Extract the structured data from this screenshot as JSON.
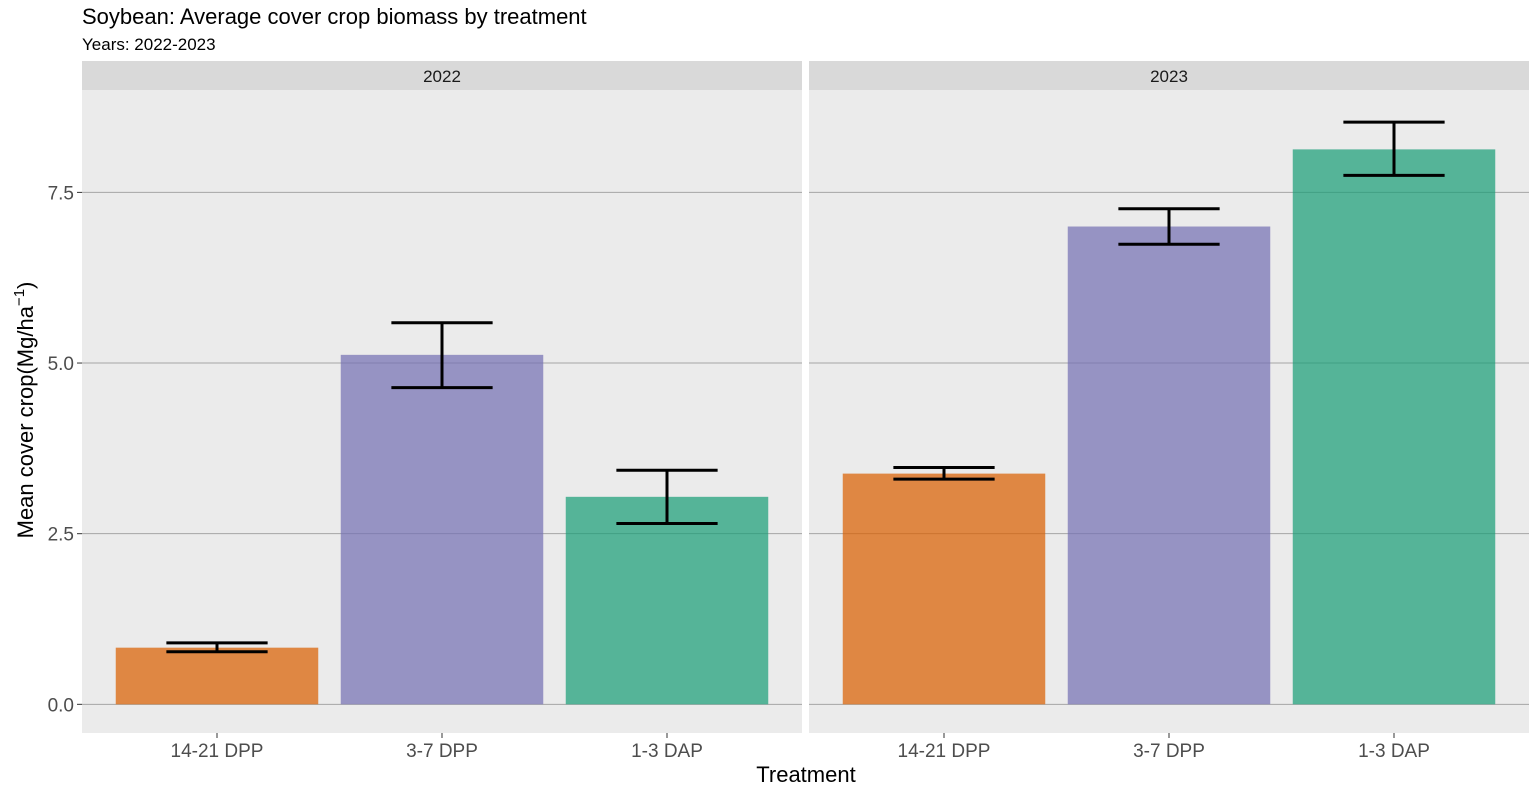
{
  "chart_data": {
    "type": "bar",
    "title": "Soybean: Average cover crop biomass by treatment",
    "subtitle": "Years: 2022-2023",
    "xlabel": "Treatment",
    "ylabel_main": "Mean cover crop(Mg/ha",
    "ylabel_sup": "−1",
    "ylabel_close": ")",
    "ylim": [
      -0.42,
      9.0
    ],
    "yticks": [
      0.0,
      2.5,
      5.0,
      7.5
    ],
    "ytick_labels": [
      "0.0",
      "2.5",
      "5.0",
      "7.5"
    ],
    "categories": [
      "14-21 DPP",
      "3-7 DPP",
      "1-3 DAP"
    ],
    "colors": [
      "#D95F02",
      "#7570B3",
      "#1B9E77"
    ],
    "grid": true,
    "legend": "none",
    "facets": [
      {
        "label": "2022",
        "values": [
          0.83,
          5.12,
          3.04
        ],
        "error_low": [
          0.77,
          4.64,
          2.65
        ],
        "error_high": [
          0.9,
          5.59,
          3.43
        ]
      },
      {
        "label": "2023",
        "values": [
          3.38,
          7.0,
          8.13
        ],
        "error_low": [
          3.3,
          6.74,
          7.75
        ],
        "error_high": [
          3.47,
          7.26,
          8.53
        ]
      }
    ]
  }
}
